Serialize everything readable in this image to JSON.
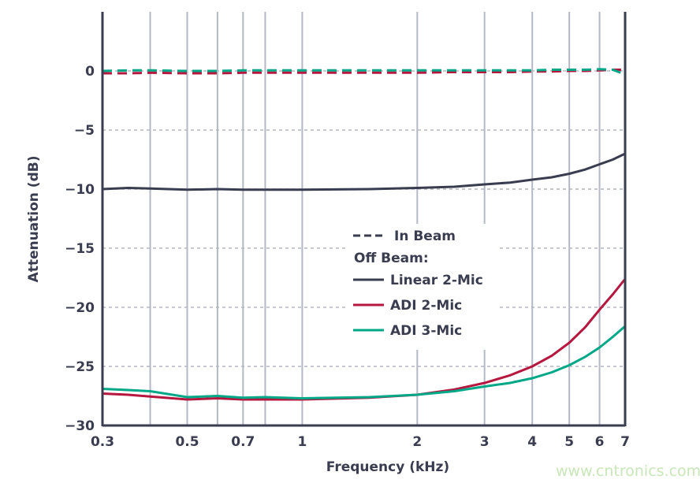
{
  "chart_data": {
    "type": "line",
    "xlabel": "Frequency (kHz)",
    "ylabel": "Attenuation (dB)",
    "xscale": "log",
    "xlim": [
      0.3,
      7
    ],
    "ylim": [
      -30,
      5
    ],
    "xticks": [
      0.3,
      0.5,
      0.7,
      1,
      2,
      3,
      4,
      5,
      6,
      7
    ],
    "xtick_labels": [
      "0.3",
      "0.5",
      "0.7",
      "1",
      "2",
      "3",
      "4",
      "5",
      "6",
      "7"
    ],
    "xgrid": [
      0.4,
      0.5,
      0.6,
      0.7,
      0.8,
      1,
      2,
      3,
      4,
      5,
      6
    ],
    "yticks": [
      0,
      -5,
      -10,
      -15,
      -20,
      -25,
      -30
    ],
    "ytick_labels": [
      "0",
      "-5",
      "-10",
      "-15",
      "-20",
      "-25",
      "-30"
    ],
    "grid": true,
    "legend_placement": "center",
    "legend": {
      "in_beam": "In Beam",
      "off_beam_heading": "Off Beam:",
      "entries": [
        "Linear 2-Mic",
        "ADI 2-Mic",
        "ADI 3-Mic"
      ]
    },
    "x": [
      0.3,
      0.35,
      0.4,
      0.5,
      0.6,
      0.7,
      0.8,
      1,
      1.5,
      2,
      2.5,
      3,
      3.5,
      4,
      4.5,
      5,
      5.5,
      6,
      6.5,
      7
    ],
    "series": [
      {
        "name": "Linear 2-Mic",
        "beam": "off",
        "style": "solid",
        "color": "#3a3d4f",
        "values": [
          -10.0,
          -9.9,
          -9.95,
          -10.05,
          -10.0,
          -10.05,
          -10.05,
          -10.05,
          -10.0,
          -9.9,
          -9.8,
          -9.6,
          -9.45,
          -9.2,
          -9.0,
          -8.7,
          -8.35,
          -7.9,
          -7.5,
          -7.0
        ]
      },
      {
        "name": "ADI 2-Mic",
        "beam": "off",
        "style": "solid",
        "color": "#b5173f",
        "values": [
          -27.3,
          -27.4,
          -27.55,
          -27.8,
          -27.7,
          -27.8,
          -27.8,
          -27.8,
          -27.65,
          -27.4,
          -26.95,
          -26.4,
          -25.75,
          -25.0,
          -24.1,
          -23.0,
          -21.7,
          -20.2,
          -18.9,
          -17.6
        ]
      },
      {
        "name": "ADI 3-Mic",
        "beam": "off",
        "style": "solid",
        "color": "#00a887",
        "values": [
          -26.9,
          -27.0,
          -27.1,
          -27.6,
          -27.5,
          -27.65,
          -27.6,
          -27.7,
          -27.6,
          -27.4,
          -27.1,
          -26.7,
          -26.4,
          -26.0,
          -25.5,
          -24.9,
          -24.2,
          -23.4,
          -22.5,
          -21.6
        ]
      },
      {
        "name": "ADI 2-Mic",
        "beam": "in",
        "style": "dashed",
        "color": "#b5173f",
        "values": [
          -0.2,
          -0.2,
          -0.15,
          -0.2,
          -0.2,
          -0.15,
          -0.15,
          -0.15,
          -0.15,
          -0.15,
          -0.1,
          -0.1,
          -0.1,
          -0.05,
          -0.05,
          0.0,
          0.0,
          0.05,
          0.1,
          0.1
        ]
      },
      {
        "name": "ADI 3-Mic",
        "beam": "in",
        "style": "dashed",
        "color": "#00a887",
        "values": [
          0.0,
          0.05,
          0.05,
          0.0,
          0.0,
          0.05,
          0.05,
          0.05,
          0.05,
          0.05,
          0.05,
          0.05,
          0.05,
          0.05,
          0.1,
          0.1,
          0.1,
          0.15,
          0.1,
          -0.3
        ]
      }
    ]
  },
  "watermark": "www.cntronics.com",
  "colors": {
    "axis": "#3a3d4f",
    "grid": "#b4b7c4"
  }
}
